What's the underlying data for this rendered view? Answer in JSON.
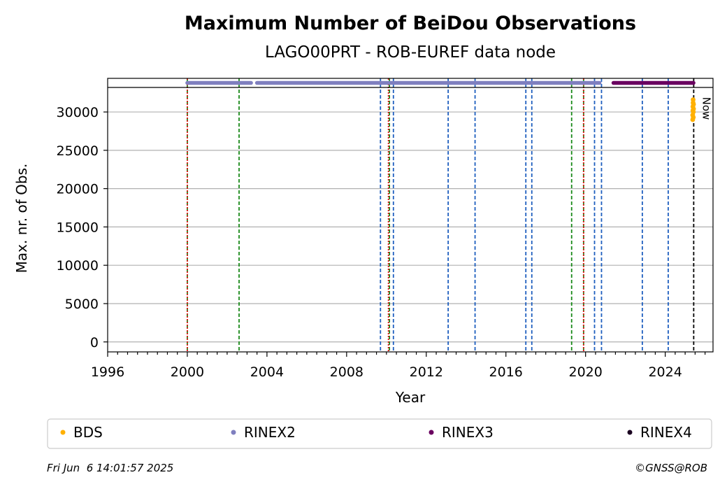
{
  "chart_data": {
    "type": "scatter",
    "title": "Maximum Number of BeiDou Observations",
    "subtitle": "LAGO00PRT - ROB-EUREF data node",
    "xlabel": "Year",
    "ylabel": "Max. nr. of Obs.",
    "xlim": [
      1996,
      2026.4
    ],
    "ylim": [
      -1300,
      33200
    ],
    "x_ticks": [
      1996,
      2000,
      2004,
      2008,
      2012,
      2016,
      2020,
      2024
    ],
    "x_tick_labels": [
      "1996",
      "2000",
      "2004",
      "2008",
      "2012",
      "2016",
      "2020",
      "2024"
    ],
    "y_ticks": [
      0,
      5000,
      10000,
      15000,
      20000,
      25000,
      30000
    ],
    "y_tick_labels": [
      "0",
      "5000",
      "10000",
      "15000",
      "20000",
      "25000",
      "30000"
    ],
    "grid": "horizontal",
    "now_label": "Now",
    "now_year": 2025.43,
    "series": [
      {
        "name": "BDS",
        "color": "#ffb000",
        "points": [
          [
            2025.38,
            29000
          ],
          [
            2025.38,
            29600
          ],
          [
            2025.39,
            30200
          ],
          [
            2025.39,
            30700
          ],
          [
            2025.4,
            31200
          ],
          [
            2025.4,
            31600
          ],
          [
            2025.41,
            30000
          ],
          [
            2025.41,
            29300
          ],
          [
            2025.42,
            31000
          ],
          [
            2025.42,
            30400
          ]
        ]
      }
    ],
    "file_availability": [
      {
        "name": "RINEX2",
        "color": "#7f7fbf",
        "segments": [
          [
            2000.0,
            2003.2
          ],
          [
            2003.5,
            2020.7
          ]
        ]
      },
      {
        "name": "RINEX3",
        "color": "#6a0060",
        "segments": [
          [
            2021.4,
            2025.42
          ]
        ]
      },
      {
        "name": "RINEX4",
        "color": "#1a0020",
        "segments": []
      }
    ],
    "event_lines": {
      "blue": [
        2009.7,
        2010.35,
        2013.1,
        2014.45,
        2017.0,
        2017.3,
        2020.45,
        2020.8,
        2022.85,
        2024.15
      ],
      "green": [
        2000.0,
        2002.6,
        2010.15,
        2019.3,
        2019.9
      ],
      "red": [
        2000.0,
        2010.1,
        2019.9
      ]
    },
    "legend_position": "bottom"
  },
  "footer": {
    "timestamp": "Fri Jun  6 14:01:57 2025",
    "credit": "©GNSS@ROB"
  }
}
